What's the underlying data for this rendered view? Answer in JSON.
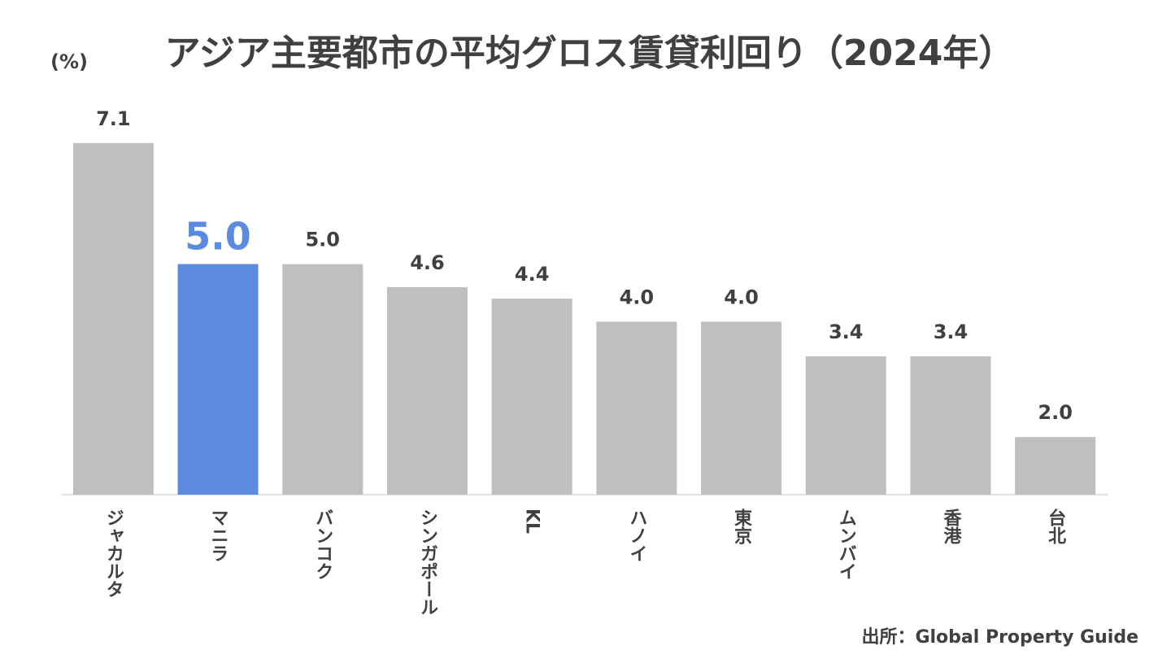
{
  "chart_data": {
    "type": "bar",
    "title": "アジア主要都市の平均グロス賃貸利回り（2024年）",
    "y_label": "(%)",
    "source": "出所：Global Property Guide",
    "categories": [
      "ジャカルタ",
      "マニラ",
      "バンコク",
      "シンガポール",
      "KL",
      "ハノイ",
      "東京",
      "ムンバイ",
      "香港",
      "台北"
    ],
    "values": [
      7.1,
      5.0,
      5.0,
      4.6,
      4.4,
      4.0,
      4.0,
      3.4,
      3.4,
      2.0
    ],
    "value_labels": [
      "7.1",
      "5.0",
      "5.0",
      "4.6",
      "4.4",
      "4.0",
      "4.0",
      "3.4",
      "3.4",
      "2.0"
    ],
    "colors": [
      "#bfbfbf",
      "#5b8ae0",
      "#bfbfbf",
      "#bfbfbf",
      "#bfbfbf",
      "#bfbfbf",
      "#bfbfbf",
      "#bfbfbf",
      "#bfbfbf",
      "#bfbfbf"
    ],
    "color": "#bfbfbf",
    "ylim": [
      1,
      8
    ]
  }
}
